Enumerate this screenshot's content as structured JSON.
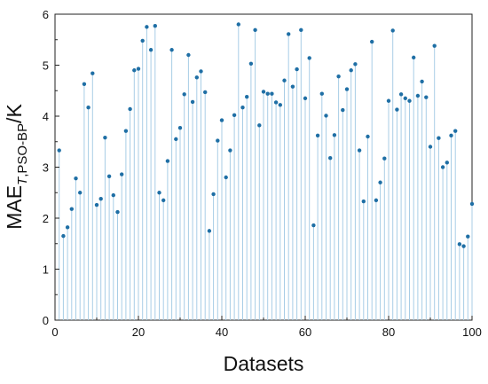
{
  "chart_data": {
    "type": "scatter",
    "style": "stem",
    "xlabel": "Datasets",
    "ylabel": {
      "main": "MAE",
      "subscript_italic": "T",
      "subscript_rest": ",PSO-BP",
      "unit": "/K"
    },
    "xlim": [
      0,
      100
    ],
    "ylim": [
      0,
      6
    ],
    "xticks": [
      "0",
      "20",
      "40",
      "60",
      "80",
      "100"
    ],
    "yticks": [
      "0",
      "1",
      "2",
      "3",
      "4",
      "5",
      "6"
    ],
    "grid": false,
    "series": [
      {
        "x": [
          1,
          2,
          3,
          4,
          5,
          6,
          7,
          8,
          9,
          10,
          11,
          12,
          13,
          14,
          15,
          16,
          17,
          18,
          19,
          20,
          21,
          22,
          23,
          24,
          25,
          26,
          27,
          28,
          29,
          30,
          31,
          32,
          33,
          34,
          35,
          36,
          37,
          38,
          39,
          40,
          41,
          42,
          43,
          44,
          45,
          46,
          47,
          48,
          49,
          50,
          51,
          52,
          53,
          54,
          55,
          56,
          57,
          58,
          59,
          60,
          61,
          62,
          63,
          64,
          65,
          66,
          67,
          68,
          69,
          70,
          71,
          72,
          73,
          74,
          75,
          76,
          77,
          78,
          79,
          80,
          81,
          82,
          83,
          84,
          85,
          86,
          87,
          88,
          89,
          90,
          91,
          92,
          93,
          94,
          95,
          96,
          97,
          98,
          99,
          100
        ],
        "y": [
          3.33,
          1.65,
          1.82,
          2.18,
          2.78,
          2.5,
          4.63,
          4.17,
          4.84,
          2.26,
          2.38,
          3.58,
          2.82,
          2.45,
          2.12,
          2.86,
          3.71,
          4.14,
          4.9,
          4.93,
          5.48,
          5.75,
          5.3,
          5.77,
          2.5,
          2.35,
          3.12,
          5.3,
          3.55,
          3.77,
          4.43,
          5.2,
          4.28,
          4.76,
          4.88,
          4.47,
          1.75,
          2.47,
          3.52,
          3.92,
          2.8,
          3.33,
          4.02,
          5.8,
          4.17,
          4.38,
          5.03,
          5.69,
          3.82,
          4.48,
          4.44,
          4.44,
          4.27,
          4.22,
          4.7,
          5.61,
          4.58,
          4.92,
          5.69,
          4.35,
          5.14,
          1.86,
          3.62,
          4.44,
          4.01,
          3.18,
          3.63,
          4.78,
          4.12,
          4.53,
          4.9,
          5.02,
          3.33,
          2.33,
          3.6,
          5.46,
          2.35,
          2.7,
          3.17,
          4.3,
          5.68,
          4.13,
          4.43,
          4.35,
          4.3,
          5.15,
          4.4,
          4.68,
          4.37,
          3.4,
          5.38,
          3.57,
          3.0,
          3.09,
          3.62,
          3.71,
          1.49,
          1.45,
          1.64,
          2.28
        ]
      }
    ],
    "colors": {
      "stem": "#a8cde6",
      "marker": "#1f6fa5",
      "axis": "#222222"
    }
  }
}
